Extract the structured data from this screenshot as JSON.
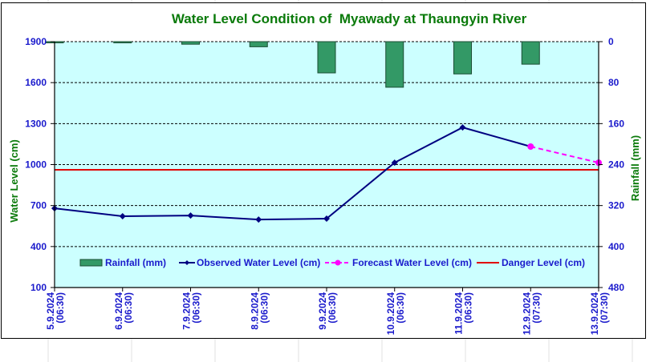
{
  "chart_data": {
    "type": "bar+line",
    "title": "Water Level Condition of  Myawady at Thaungyin River",
    "ylabel": "Water Level (cm)",
    "y2label": "Rainfall (mm)",
    "ylim": [
      100,
      1900
    ],
    "y2lim": [
      0,
      480
    ],
    "y2_inverted": true,
    "yticks": [
      "1900",
      "1600",
      "1300",
      "1000",
      "700",
      "400",
      "100"
    ],
    "yticks_values": [
      1900,
      1600,
      1300,
      1000,
      700,
      400,
      100
    ],
    "y2ticks": [
      "0",
      "80",
      "160",
      "240",
      "320",
      "400",
      "480"
    ],
    "y2ticks_values": [
      0,
      80,
      160,
      240,
      320,
      400,
      480
    ],
    "grid": true,
    "categories": [
      {
        "date": "5.9.2024",
        "time": "(06:30)"
      },
      {
        "date": "6.9.2024",
        "time": "(06:30)"
      },
      {
        "date": "7.9.2024",
        "time": "(06:30)"
      },
      {
        "date": "8.9.2024",
        "time": "(06:30)"
      },
      {
        "date": "9.9.2024",
        "time": "(06:30)"
      },
      {
        "date": "10.9.2024",
        "time": "(06:30)"
      },
      {
        "date": "11.9.2024",
        "time": "(06:30)"
      },
      {
        "date": "12.9.2024",
        "time": "(07:30)"
      },
      {
        "date": "13.9.2024",
        "time": "(07:30)"
      }
    ],
    "series": [
      {
        "name": "Rainfall (mm)",
        "type": "bar",
        "axis": "right",
        "color": "#339966",
        "values": [
          1,
          1,
          5,
          10,
          61,
          89,
          63,
          44,
          null
        ]
      },
      {
        "name": "Observed Water Level (cm)",
        "type": "line",
        "axis": "left",
        "color": "#000080",
        "marker": "diamond",
        "values": [
          680,
          622,
          627,
          598,
          604,
          1014,
          1272,
          1132,
          null
        ]
      },
      {
        "name": "Forecast Water Level (cm)",
        "type": "line",
        "axis": "left",
        "color": "#ff00ff",
        "marker": "circle",
        "dashed": true,
        "values": [
          null,
          null,
          null,
          null,
          null,
          null,
          null,
          1132,
          1014
        ]
      },
      {
        "name": "Danger Level (cm)",
        "type": "hline",
        "axis": "left",
        "color": "#e00000",
        "value": 962
      }
    ],
    "legend_position": "bottom-inside"
  },
  "colors": {
    "plot_bg": "#ccffff",
    "title": "#0a7a0a",
    "tick_text": "#1a1acc"
  }
}
